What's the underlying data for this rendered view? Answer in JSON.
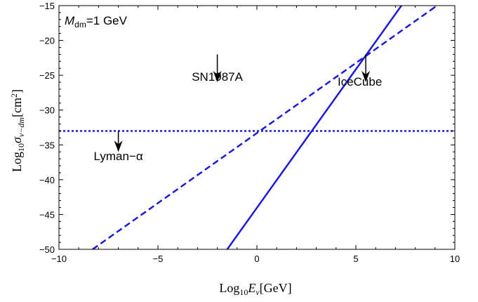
{
  "chart_data": {
    "type": "line",
    "title": "",
    "xlabel": "Log10 Eν[GeV]",
    "ylabel": "Log10 σν−dm[cm2]",
    "xlabel_parts": {
      "log": "Log",
      "sub": "10",
      "var": "E",
      "var_sub": "ν",
      "unit": "[GeV]"
    },
    "ylabel_parts": {
      "log": "Log",
      "sub": "10",
      "var": "σ",
      "var_sub": "ν−dm",
      "unit_open": "[cm",
      "unit_sup": "2",
      "unit_close": "]"
    },
    "xlim": [
      -10,
      10
    ],
    "ylim": [
      -50,
      -15
    ],
    "x_ticks": [
      -10,
      -5,
      0,
      5,
      10
    ],
    "x_tick_labels": [
      "−10",
      "−5",
      "0",
      "5",
      "10"
    ],
    "y_ticks": [
      -50,
      -45,
      -40,
      -35,
      -30,
      -25,
      -20,
      -15
    ],
    "y_tick_labels": [
      "−50",
      "−45",
      "−40",
      "−35",
      "−30",
      "−25",
      "−20",
      "−15"
    ],
    "grid": false,
    "mass_label": {
      "var": "M",
      "sub": "dm",
      "text": "=1 GeV"
    },
    "series": [
      {
        "style": "solid",
        "color": "#1a1adb",
        "x": [
          -1.5,
          7.3
        ],
        "y": [
          -50,
          -15
        ]
      },
      {
        "style": "dashed",
        "color": "#1a1adb",
        "x": [
          -8.3,
          9.1
        ],
        "y": [
          -50,
          -15
        ]
      },
      {
        "style": "dotted",
        "color": "#1a1adb",
        "x": [
          -10,
          10
        ],
        "y": [
          -33,
          -33
        ]
      }
    ],
    "annotations": [
      {
        "label": "SN1987A",
        "x": -2.0,
        "y": -25.8,
        "arrow_x": -2.0,
        "arrow_y_top": -22.0,
        "arrow_y_tip": -26.0
      },
      {
        "label": "IceCube",
        "x": 5.2,
        "y": -26.5,
        "arrow_x": 5.5,
        "arrow_y_top": -22.0,
        "arrow_y_tip": -26.0
      },
      {
        "label": "Lyman−α",
        "x": -7.0,
        "y": -37.2,
        "arrow_x": -7.0,
        "arrow_y_top": -33.0,
        "arrow_y_tip": -36.0
      }
    ]
  }
}
